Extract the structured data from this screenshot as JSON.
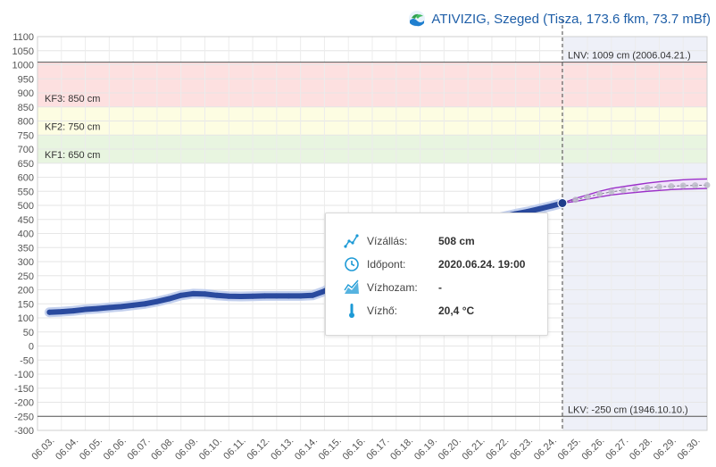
{
  "header": {
    "title": "ATIVIZIG, Szeged (Tisza, 173.6 fkm, 73.7 mBf)",
    "logo_icon": "ativizig-logo-icon"
  },
  "tooltip": {
    "rows": [
      {
        "icon": "water-level-icon",
        "label": "Vízállás:",
        "value": "508 cm"
      },
      {
        "icon": "clock-icon",
        "label": "Időpont:",
        "value": "2020.06.24. 19:00"
      },
      {
        "icon": "discharge-icon",
        "label": "Vízhozam:",
        "value": "-"
      },
      {
        "icon": "thermometer-icon",
        "label": "Vízhő:",
        "value": "20,4 °C"
      }
    ]
  },
  "colors": {
    "band_kf3": "#fde0e0",
    "band_kf2": "#fdfde2",
    "band_kf1": "#e8f5e0",
    "measured": "#2a4a9e",
    "forecast": "#9b2fc9",
    "forecast_dots": "#b9b9c6",
    "future_bg": "#eef0f8",
    "header_text": "#1f5fa8"
  },
  "chart_data": {
    "type": "line",
    "title": "ATIVIZIG, Szeged (Tisza, 173.6 fkm, 73.7 mBf)",
    "xlabel": "",
    "ylabel": "",
    "ylim": [
      -300,
      1100
    ],
    "y_ticks": [
      "1100",
      "1050",
      "1000",
      "950",
      "900",
      "850",
      "800",
      "750",
      "700",
      "650",
      "600",
      "550",
      "500",
      "450",
      "400",
      "350",
      "300",
      "250",
      "200",
      "150",
      "100",
      "50",
      "0",
      "-50",
      "-100",
      "-150",
      "-200",
      "-250",
      "-300"
    ],
    "x_ticks": [
      "06.03.",
      "06.04.",
      "06.05.",
      "06.06.",
      "06.07.",
      "06.08.",
      "06.09.",
      "06.10.",
      "06.11.",
      "06.12.",
      "06.13.",
      "06.14.",
      "06.15.",
      "06.16.",
      "06.17.",
      "06.18.",
      "06.19.",
      "06.20.",
      "06.21.",
      "06.22.",
      "06.23.",
      "06.24.",
      "06.25.",
      "06.26.",
      "06.27.",
      "06.28.",
      "06.29.",
      "06.30."
    ],
    "bands": [
      {
        "label": "KF3: 850 cm",
        "from": 850,
        "to": 1009,
        "color_key": "band_kf3"
      },
      {
        "label": "KF2: 750 cm",
        "from": 750,
        "to": 850,
        "color_key": "band_kf2"
      },
      {
        "label": "KF1: 650 cm",
        "from": 650,
        "to": 750,
        "color_key": "band_kf1"
      }
    ],
    "reference_lines": [
      {
        "label": "LNV: 1009 cm (2006.04.21.)",
        "value": 1009
      },
      {
        "label": "LKV: -250 cm (1946.10.10.)",
        "value": -250
      }
    ],
    "now_marker": {
      "x": 21.45,
      "value": 508
    },
    "series": [
      {
        "kind": "measured",
        "x": [
          0,
          0.5,
          1,
          1.5,
          2,
          2.5,
          3,
          3.5,
          4,
          4.5,
          5,
          5.5,
          6,
          6.5,
          7,
          7.5,
          8,
          8.5,
          9,
          9.5,
          10,
          10.5,
          11,
          11.5,
          12,
          12.5,
          13,
          13.5,
          14,
          14.5,
          15,
          15.5,
          16,
          16.5,
          17,
          17.5,
          18,
          18.5,
          19,
          19.5,
          20,
          20.5,
          21,
          21.45
        ],
        "values": [
          120,
          122,
          125,
          130,
          133,
          137,
          140,
          145,
          150,
          158,
          168,
          180,
          186,
          185,
          180,
          177,
          176,
          177,
          178,
          178,
          178,
          178,
          180,
          195,
          220,
          245,
          262,
          275,
          290,
          310,
          330,
          350,
          370,
          392,
          412,
          428,
          440,
          450,
          460,
          470,
          478,
          488,
          498,
          508
        ]
      },
      {
        "kind": "forecast",
        "x": [
          21.45,
          22,
          22.5,
          23,
          23.5,
          24,
          24.5,
          25,
          25.5,
          26,
          26.5,
          27,
          27.5
        ],
        "values": [
          508,
          520,
          530,
          540,
          548,
          554,
          558,
          562,
          566,
          568,
          570,
          571,
          572
        ],
        "upper": [
          508,
          525,
          537,
          550,
          560,
          567,
          573,
          579,
          584,
          588,
          591,
          593,
          594
        ],
        "lower": [
          508,
          514,
          522,
          530,
          537,
          542,
          546,
          550,
          553,
          556,
          558,
          559,
          560
        ]
      }
    ]
  }
}
